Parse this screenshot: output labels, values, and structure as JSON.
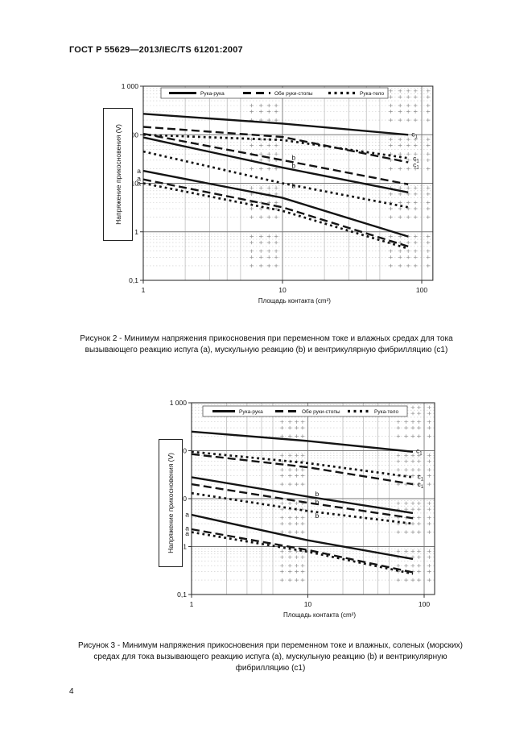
{
  "page": {
    "header": "ГОСТ Р 55629—2013/IEC/TS 61201:2007",
    "page_number": "4"
  },
  "figure2": {
    "caption": "Рисунок 2 - Минимум напряжения прикосновения при переменном токе и влажных средах для тока вызывающего реакцию испуга (a), мускульную реакцию (b) и вентрикулярную фибрилляцию (c1)"
  },
  "figure3": {
    "caption": "Рисунок 3 - Минимум напряжения прикосновения при переменном токе и влажных, соленых (морских) средах для тока вызывающего реакцию испуга (a), мускульную реакцию (b) и вентрикулярную фибрилляцию (c1)"
  },
  "chart_data": [
    {
      "type": "line",
      "figure": "Рисунок 2",
      "title": "Минимум напряжения прикосновения при переменном токе и влажных средах",
      "xlabel": "Площадь контакта (cm²)",
      "ylabel": "Напряжение прикосновения (V)",
      "x_scale": "log",
      "y_scale": "log",
      "xlim": [
        1,
        100
      ],
      "ylim": [
        0.1,
        1000
      ],
      "x_ticks": [
        "1",
        "10",
        "100"
      ],
      "y_ticks": [
        "1 000",
        "100",
        "10",
        "1",
        "0,1"
      ],
      "grid": "log major + minor crosses",
      "legend_position": "top-inside",
      "legend": [
        {
          "label": "Рука-рука",
          "style": "solid"
        },
        {
          "label": "Обе руки-стопы",
          "style": "dashed"
        },
        {
          "label": "Рука-тело",
          "style": "dotted"
        }
      ],
      "x": [
        1,
        10,
        80
      ],
      "series": [
        {
          "name": "Рука-рука (c1)",
          "style": "solid",
          "values": [
            270,
            170,
            100
          ]
        },
        {
          "name": "Обе руки-стопы (c1)",
          "style": "dashed",
          "values": [
            145,
            90,
            27
          ]
        },
        {
          "name": "Рука-тело (c1)",
          "style": "dotted",
          "values": [
            100,
            78,
            33
          ]
        },
        {
          "name": "Обе руки-стопы (b)",
          "style": "dashed",
          "values": [
            105,
            30,
            9.5
          ]
        },
        {
          "name": "Рука-рука (b)",
          "style": "solid",
          "values": [
            88,
            21,
            6.5
          ]
        },
        {
          "name": "Рука-тело (b)",
          "style": "dotted",
          "values": [
            45,
            10,
            3.2
          ]
        },
        {
          "name": "Рука-рука (a)",
          "style": "solid",
          "values": [
            18,
            5,
            0.8
          ]
        },
        {
          "name": "Обе руки-стопы (a)",
          "style": "dashed",
          "values": [
            12,
            3.2,
            0.5
          ]
        },
        {
          "name": "Рука-тело (a)",
          "style": "dotted",
          "values": [
            10,
            2.7,
            0.45
          ]
        }
      ],
      "annotations": [
        {
          "text": "a",
          "x": 1,
          "y": 18,
          "side": "left"
        },
        {
          "text": "a",
          "x": 1,
          "y": 12.5,
          "side": "left"
        },
        {
          "text": "a",
          "x": 1,
          "y": 10,
          "side": "left"
        },
        {
          "text": "b",
          "x": 12,
          "y": 34,
          "side": "mid"
        },
        {
          "text": "b",
          "x": 12,
          "y": 23,
          "side": "mid"
        },
        {
          "text": "b",
          "x": 12,
          "y": 9,
          "side": "mid"
        },
        {
          "text": "c",
          "sub": "1",
          "x": 80,
          "y": 103,
          "side": "right"
        },
        {
          "text": "c",
          "sub": "1",
          "x": 82,
          "y": 33,
          "side": "right"
        },
        {
          "text": "c",
          "sub": "1",
          "x": 82,
          "y": 24,
          "side": "right"
        }
      ]
    },
    {
      "type": "line",
      "figure": "Рисунок 3",
      "title": "Минимум напряжения прикосновения при переменном токе и влажных, соленых (морских) средах",
      "xlabel": "Площадь контакта (cm²)",
      "ylabel": "Напряжение прикосновения (V)",
      "x_scale": "log",
      "y_scale": "log",
      "xlim": [
        1,
        100
      ],
      "ylim": [
        0.1,
        1000
      ],
      "x_ticks": [
        "1",
        "10",
        "100"
      ],
      "y_ticks": [
        "1 000",
        "100",
        "10",
        "1",
        "0,1"
      ],
      "grid": "log major + minor crosses",
      "legend_position": "top-inside",
      "legend": [
        {
          "label": "Рука-рука",
          "style": "solid"
        },
        {
          "label": "Обе руки-стопы",
          "style": "dashed"
        },
        {
          "label": "Рука-тело",
          "style": "dotted"
        }
      ],
      "x": [
        1,
        10,
        80
      ],
      "series": [
        {
          "name": "Рука-рука (c1)",
          "style": "solid",
          "values": [
            250,
            160,
            95
          ]
        },
        {
          "name": "Рука-тело (c1)",
          "style": "dotted",
          "values": [
            95,
            55,
            28
          ]
        },
        {
          "name": "Обе руки-стопы (c1)",
          "style": "dashed",
          "values": [
            85,
            45,
            20
          ]
        },
        {
          "name": "Рука-рука (b)",
          "style": "solid",
          "values": [
            28,
            11,
            5
          ]
        },
        {
          "name": "Обе руки-стопы (b)",
          "style": "dashed",
          "values": [
            20,
            8.2,
            3.9
          ]
        },
        {
          "name": "Рука-тело (b)",
          "style": "dotted",
          "values": [
            13,
            5.5,
            3
          ]
        },
        {
          "name": "Рука-рука (a)",
          "style": "solid",
          "values": [
            4.6,
            1.35,
            0.55
          ]
        },
        {
          "name": "Обе руки-стопы (a)",
          "style": "dashed",
          "values": [
            2.3,
            0.85,
            0.29
          ]
        },
        {
          "name": "Рука-тело (a)",
          "style": "dotted",
          "values": [
            2.0,
            0.78,
            0.27
          ]
        }
      ],
      "annotations": [
        {
          "text": "a",
          "x": 1,
          "y": 4.7,
          "side": "left"
        },
        {
          "text": "a",
          "x": 1,
          "y": 2.45,
          "side": "left"
        },
        {
          "text": "a",
          "x": 1,
          "y": 1.9,
          "side": "left"
        },
        {
          "text": "b",
          "x": 12,
          "y": 12.5,
          "side": "mid"
        },
        {
          "text": "b",
          "x": 12,
          "y": 8.5,
          "side": "mid"
        },
        {
          "text": "b",
          "x": 12,
          "y": 4.4,
          "side": "mid"
        },
        {
          "text": "c",
          "sub": "1",
          "x": 80,
          "y": 100,
          "side": "right"
        },
        {
          "text": "c",
          "sub": "1",
          "x": 82,
          "y": 29,
          "side": "right"
        },
        {
          "text": "c",
          "sub": "1",
          "x": 82,
          "y": 20,
          "side": "right"
        }
      ]
    }
  ]
}
